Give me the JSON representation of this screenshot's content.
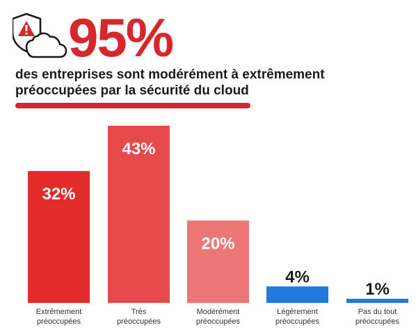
{
  "header": {
    "headline": "95%",
    "subtitle_line1": "des entreprises sont modérément à extrêmement",
    "subtitle_line2": "préoccupées par la sécurité du cloud"
  },
  "icons": {
    "warning_shield": "warning-shield-icon",
    "cloud": "cloud-icon"
  },
  "colors": {
    "brand_red": "#d7262c",
    "bar_red_strong": "#e32b2b",
    "bar_red_mid": "#e64a4a",
    "bar_red_light": "#ed7777",
    "bar_blue": "#2378dd"
  },
  "chart_data": {
    "type": "bar",
    "categories": [
      [
        "Extrêmement",
        "préoccupées"
      ],
      [
        "Très",
        "préoccupées"
      ],
      [
        "Modérément",
        "préoccupées"
      ],
      [
        "Légèrement",
        "préoccupées"
      ],
      [
        "Pas du tout",
        "préoccupées"
      ]
    ],
    "values": [
      32,
      43,
      20,
      4,
      1
    ],
    "value_labels": [
      "32%",
      "43%",
      "20%",
      "4%",
      "1%"
    ],
    "bar_colors": [
      "#e32b2b",
      "#e64a4a",
      "#ed7777",
      "#2378dd",
      "#2378dd"
    ],
    "ylim": [
      0,
      43
    ],
    "grid": false,
    "legend": "none"
  }
}
